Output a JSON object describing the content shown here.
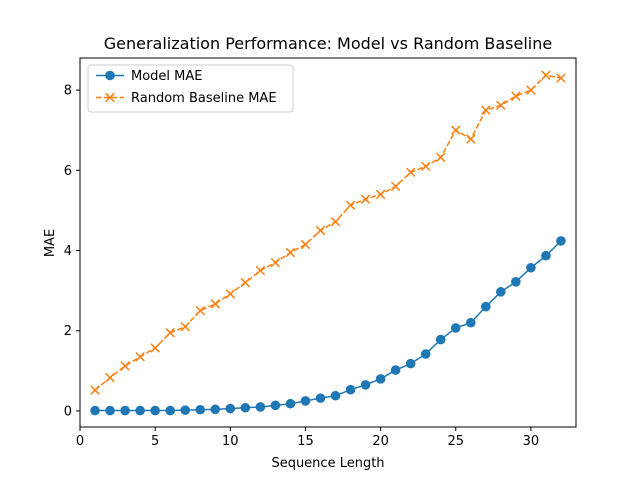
{
  "chart_data": {
    "type": "line",
    "title": "Generalization Performance: Model vs Random Baseline",
    "xlabel": "Sequence Length",
    "ylabel": "MAE",
    "xlim": [
      0,
      33
    ],
    "ylim": [
      -0.4,
      8.8
    ],
    "x_ticks": [
      0,
      5,
      10,
      15,
      20,
      25,
      30
    ],
    "y_ticks": [
      0,
      2,
      4,
      6,
      8
    ],
    "grid": false,
    "legend_position": "top-left",
    "x": [
      1,
      2,
      3,
      4,
      5,
      6,
      7,
      8,
      9,
      10,
      11,
      12,
      13,
      14,
      15,
      16,
      17,
      18,
      19,
      20,
      21,
      22,
      23,
      24,
      25,
      26,
      27,
      28,
      29,
      30,
      31,
      32
    ],
    "series": [
      {
        "name": "Model MAE",
        "color": "#1f77b4",
        "marker": "circle",
        "line_style": "solid",
        "values": [
          0.01,
          0.01,
          0.01,
          0.01,
          0.01,
          0.01,
          0.02,
          0.03,
          0.04,
          0.06,
          0.08,
          0.1,
          0.14,
          0.18,
          0.25,
          0.32,
          0.38,
          0.53,
          0.65,
          0.8,
          1.02,
          1.18,
          1.42,
          1.78,
          2.07,
          2.2,
          2.6,
          2.97,
          3.22,
          3.57,
          3.87,
          4.24
        ]
      },
      {
        "name": "Random Baseline MAE",
        "color": "#ff7f0e",
        "marker": "x",
        "line_style": "dashed",
        "values": [
          0.52,
          0.83,
          1.12,
          1.35,
          1.57,
          1.95,
          2.1,
          2.5,
          2.67,
          2.92,
          3.2,
          3.5,
          3.7,
          3.95,
          4.15,
          4.5,
          4.72,
          5.13,
          5.28,
          5.4,
          5.6,
          5.95,
          6.1,
          6.32,
          7.0,
          6.78,
          7.5,
          7.62,
          7.85,
          8.0,
          8.37,
          8.3
        ]
      }
    ]
  }
}
